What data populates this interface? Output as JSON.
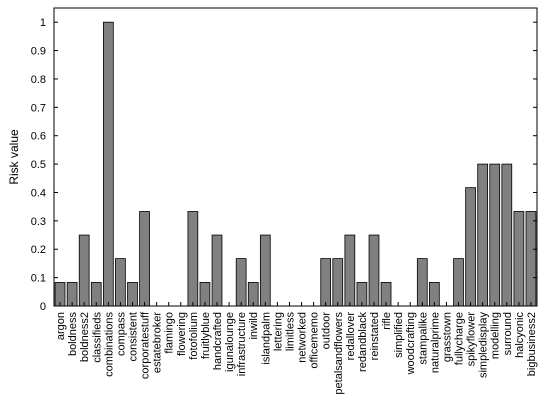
{
  "chart_data": {
    "type": "bar",
    "title": "",
    "xlabel": "",
    "ylabel": "Risk value",
    "ylim": [
      0,
      1.05
    ],
    "yticks": [
      0,
      0.1,
      0.2,
      0.3,
      0.4,
      0.5,
      0.6,
      0.7,
      0.8,
      0.9,
      1
    ],
    "ytick_labels": [
      "0",
      "0.1",
      "0.2",
      "0.3",
      "0.4",
      "0.5",
      "0.6",
      "0.7",
      "0.8",
      "0.9",
      "1"
    ],
    "grid": false,
    "bar_color": "#808080",
    "bar_edge_color": "#000000",
    "categories": [
      "argon",
      "boldness",
      "boldness2",
      "classifieds",
      "combinations",
      "compass",
      "consistent",
      "corporatestuff",
      "estatebroker",
      "flamingo",
      "flowering",
      "fotofolium",
      "fruitlyblue",
      "handcrafted",
      "igunalounge",
      "infrastructure",
      "inwild",
      "islandpalm",
      "lettering",
      "limitless",
      "networked",
      "officememo",
      "outdoor",
      "petalsandflowers",
      "redallover",
      "redandblack",
      "reinstated",
      "rifle",
      "simplified",
      "woodcrafting",
      "stampalike",
      "naturalprime",
      "grasstown",
      "fullycharge",
      "spikyflower",
      "simpledisplay",
      "modelling",
      "surround",
      "halcyonic",
      "bigbusiness2"
    ],
    "values": [
      0.083,
      0.083,
      0.25,
      0.083,
      1.0,
      0.167,
      0.083,
      0.333,
      0,
      0,
      0,
      0.333,
      0.083,
      0.25,
      0,
      0.167,
      0.083,
      0.25,
      0,
      0,
      0,
      0,
      0.167,
      0.167,
      0.25,
      0.083,
      0.25,
      0.083,
      0,
      0,
      0.167,
      0.083,
      0,
      0.167,
      0.417,
      0.5,
      0.5,
      0.5,
      0.333,
      0.333
    ]
  }
}
